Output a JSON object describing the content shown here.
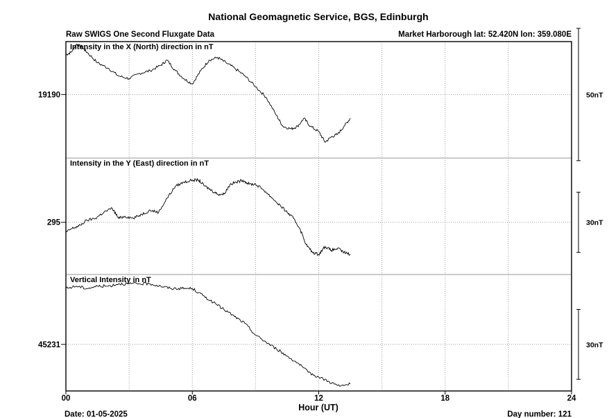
{
  "title": "National Geomagnetic Service, BGS, Edinburgh",
  "subtitle_left": "Raw SWIGS One Second Fluxgate Data",
  "subtitle_right": "Market Harborough  lat: 52.420N lon: 359.080E",
  "footer_left": "Date: 01-05-2025",
  "footer_right": "Day number:  121",
  "chart_data": {
    "type": "line",
    "xlabel": "Hour (UT)",
    "xlim": [
      0,
      24
    ],
    "xticks": [
      0,
      6,
      12,
      18,
      24
    ],
    "xtick_labels": [
      "00",
      "06",
      "12",
      "18",
      "24"
    ],
    "grid": true,
    "panels": [
      {
        "key": "x",
        "label": "Intensity in the X (North) direction in nT",
        "ref_value": 19190,
        "ref_label": "19190",
        "ylim": [
          19166,
          19210
        ],
        "scale_bar": 50,
        "scale_label": "50nT",
        "series": [
          {
            "x": [
              0,
              0.25,
              0.5,
              0.75,
              1.0,
              1.5,
              2.0,
              2.5,
              3.0,
              3.5,
              4.0,
              4.5,
              4.8,
              5.2,
              5.6,
              6.0,
              6.4,
              6.8,
              7.2,
              7.6,
              8.0,
              8.5,
              9.0,
              9.5,
              10.0,
              10.3,
              10.7,
              11.0,
              11.3,
              11.6,
              12.0,
              12.3,
              12.6,
              12.9,
              13.2,
              13.5
            ],
            "y": [
              19205,
              19206,
              19209,
              19208,
              19206,
              19202,
              19200,
              19197,
              19196,
              19198,
              19199,
              19201,
              19203,
              19199,
              19196,
              19194,
              19199,
              19203,
              19204,
              19202,
              19200,
              19197,
              19193,
              19189,
              19182,
              19178,
              19177,
              19178,
              19181,
              19178,
              19176,
              19172,
              19174,
              19175,
              19178,
              19181
            ]
          }
        ]
      },
      {
        "key": "y",
        "label": "Intensity in the Y (East) direction in nT",
        "ref_value": 295,
        "ref_label": "295",
        "ylim": [
          269,
          327
        ],
        "scale_bar": 30,
        "scale_label": "30nT",
        "series": [
          {
            "x": [
              0,
              0.3,
              0.6,
              1.0,
              1.4,
              1.8,
              2.2,
              2.5,
              2.8,
              3.2,
              3.6,
              4.0,
              4.4,
              4.8,
              5.2,
              5.6,
              6.0,
              6.3,
              6.6,
              6.9,
              7.2,
              7.5,
              7.8,
              8.1,
              8.4,
              8.7,
              9.0,
              9.4,
              9.8,
              10.2,
              10.5,
              10.8,
              11.1,
              11.4,
              11.7,
              12.0,
              12.3,
              12.6,
              12.9,
              13.2,
              13.5
            ],
            "y": [
              290,
              292,
              293,
              296,
              297,
              300,
              302,
              297,
              298,
              297,
              299,
              301,
              300,
              307,
              313,
              315,
              316,
              316,
              313,
              311,
              309,
              309,
              314,
              315,
              316,
              314,
              314,
              311,
              307,
              303,
              300,
              297,
              292,
              284,
              280,
              279,
              283,
              281,
              282,
              280,
              279
            ]
          }
        ]
      },
      {
        "key": "z",
        "label": "Vertical Intensity in nT",
        "ref_value": 45231,
        "ref_label": "45231",
        "ylim": [
          45211,
          45261
        ],
        "scale_bar": 30,
        "scale_label": "30nT",
        "series": [
          {
            "x": [
              0,
              0.5,
              1.0,
              1.5,
              2.0,
              2.5,
              3.0,
              3.5,
              4.0,
              4.5,
              5.0,
              5.5,
              6.0,
              6.5,
              7.0,
              7.5,
              8.0,
              8.5,
              9.0,
              9.5,
              10.0,
              10.5,
              11.0,
              11.5,
              12.0,
              12.5,
              13.0,
              13.5
            ],
            "y": [
              45255,
              45256,
              45255,
              45256,
              45256,
              45257,
              45257,
              45257,
              45257,
              45256,
              45255,
              45255,
              45255,
              45252,
              45249,
              45246,
              45243,
              45240,
              45235,
              45232,
              45229,
              45226,
              45223,
              45219,
              45217,
              45215,
              45213,
              45214
            ]
          }
        ]
      }
    ]
  }
}
